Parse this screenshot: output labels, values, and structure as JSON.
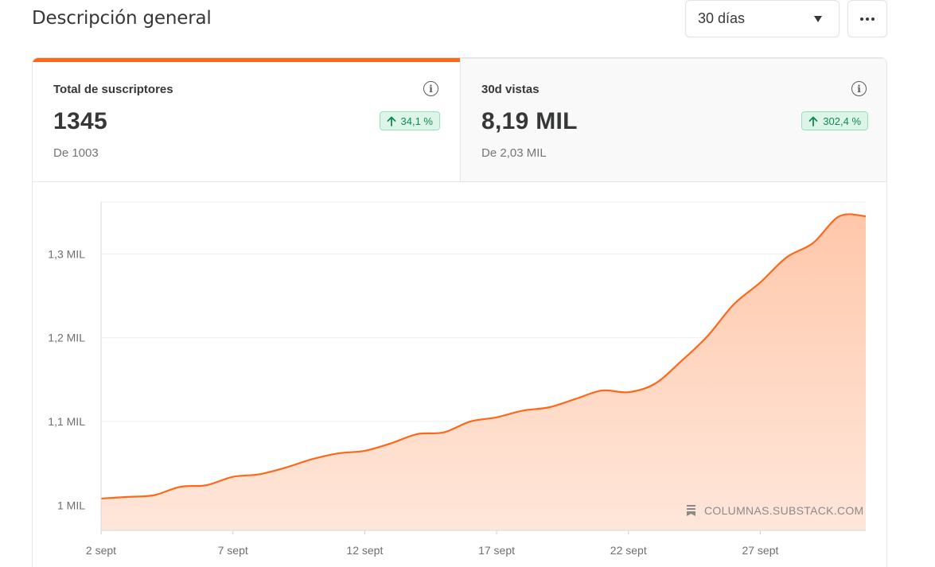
{
  "header": {
    "title": "Descripción general",
    "range_select": {
      "value": "30 días"
    }
  },
  "tabs": [
    {
      "label": "Total de suscriptores",
      "value": "1345",
      "delta": "34,1 %",
      "sub": "De 1003"
    },
    {
      "label": "30d vistas",
      "value": "8,19 MIL",
      "delta": "302,4 %",
      "sub": "De 2,03 MIL"
    }
  ],
  "colors": {
    "accent": "#ff6719",
    "positive": "#0c8a4d",
    "positive_bg": "#dcf5e8"
  },
  "watermark": "COLUMNAS.SUBSTACK.COM",
  "chart_data": {
    "type": "area",
    "x": [
      "2 sept",
      "3 sept",
      "4 sept",
      "5 sept",
      "6 sept",
      "7 sept",
      "8 sept",
      "9 sept",
      "10 sept",
      "11 sept",
      "12 sept",
      "13 sept",
      "14 sept",
      "15 sept",
      "16 sept",
      "17 sept",
      "18 sept",
      "19 sept",
      "20 sept",
      "21 sept",
      "22 sept",
      "23 sept",
      "24 sept",
      "25 sept",
      "26 sept",
      "27 sept",
      "28 sept",
      "29 sept",
      "30 sept",
      "1 oct"
    ],
    "values": [
      1008,
      1010,
      1012,
      1022,
      1024,
      1034,
      1037,
      1045,
      1055,
      1062,
      1065,
      1074,
      1085,
      1087,
      1100,
      1105,
      1113,
      1117,
      1127,
      1137,
      1135,
      1145,
      1172,
      1202,
      1240,
      1266,
      1296,
      1313,
      1345,
      1345
    ],
    "x_tick_labels": [
      "2 sept",
      "7 sept",
      "12 sept",
      "17 sept",
      "22 sept",
      "27 sept"
    ],
    "y_ticks": [
      1000,
      1100,
      1200,
      1300
    ],
    "y_tick_labels": [
      "1 MIL",
      "1,1 MIL",
      "1,2 MIL",
      "1,3 MIL"
    ],
    "ylim": [
      970,
      1362
    ],
    "grid": true,
    "legend": "none"
  }
}
